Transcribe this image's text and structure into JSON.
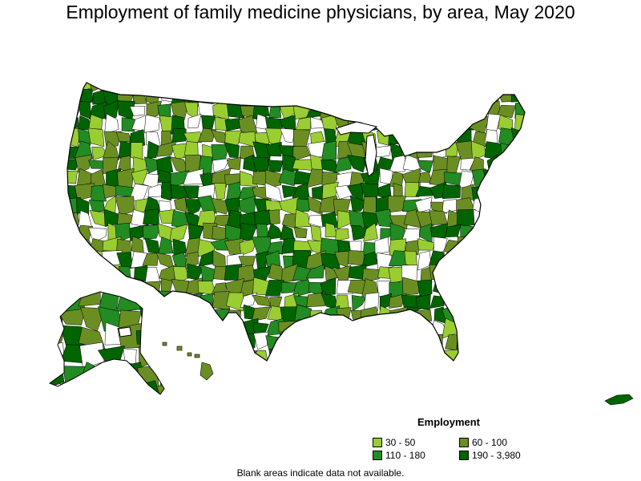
{
  "title": "Employment of family medicine physicians, by area, May 2020",
  "legend": {
    "title": "Employment",
    "items": [
      {
        "label": "30 - 50",
        "color": "#9ACD32"
      },
      {
        "label": "60 - 100",
        "color": "#6B8E23"
      },
      {
        "label": "110 - 180",
        "color": "#228B22"
      },
      {
        "label": "190 - 3,980",
        "color": "#006400"
      }
    ]
  },
  "footnote": "Blank areas indicate data not available.",
  "colors": {
    "outline": "#000000",
    "no_data": "#ffffff"
  }
}
